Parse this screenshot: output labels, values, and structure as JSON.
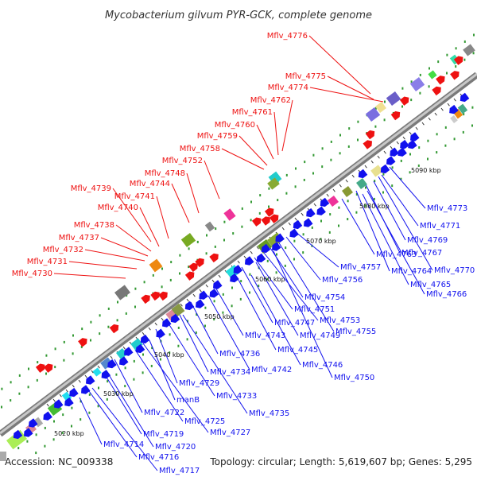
{
  "title": "Mycobacterium gilvum PYR-GCK, complete genome",
  "footer": {
    "accession": "Accession: NC_009338",
    "summary": "Topology: circular; Length: 5,619,607 bp; Genes: 5,295"
  },
  "colors": {
    "forward": "#ee1111",
    "reverse": "#1111ee",
    "backbone": "#999999",
    "dots": "#339933"
  },
  "scale_labels": [
    "5020 kbp",
    "5030 kbp",
    "5040 kbp",
    "5050 kbp",
    "5060 kbp",
    "5070 kbp",
    "5080 kbp",
    "5090 kbp"
  ],
  "forward_genes": [
    "Mflv_4776",
    "Mflv_4775",
    "Mflv_4774",
    "Mflv_4762",
    "Mflv_4761",
    "Mflv_4760",
    "Mflv_4759",
    "Mflv_4758",
    "Mflv_4752",
    "Mflv_4748",
    "Mflv_4744",
    "Mflv_4741",
    "Mflv_4739",
    "Mflv_4740",
    "Mflv_4738",
    "Mflv_4737",
    "Mflv_4732",
    "Mflv_4731",
    "Mflv_4730"
  ],
  "reverse_genes": [
    "Mflv_4773",
    "Mflv_4771",
    "Mflv_4769",
    "Mflv_4767",
    "Mflv_4770",
    "Mflv_4763",
    "Mflv_4764",
    "Mflv_4765",
    "Mflv_4766",
    "Mflv_4757",
    "Mflv_4756",
    "Mflv_4754",
    "Mflv_4751",
    "Mflv_4753",
    "Mflv_4747",
    "Mflv_4749",
    "Mflv_4755",
    "Mflv_4743",
    "Mflv_4745",
    "Mflv_4736",
    "Mflv_4746",
    "Mflv_4742",
    "Mflv_4750",
    "Mflv_4734",
    "Mflv_4729",
    "Mflv_4733",
    "manB",
    "Mflv_4735",
    "Mflv_4722",
    "Mflv_4725",
    "Mflv_4719",
    "Mflv_4727",
    "Mflv_4720",
    "Mflv_4714",
    "Mflv_4716",
    "Mflv_4717"
  ]
}
